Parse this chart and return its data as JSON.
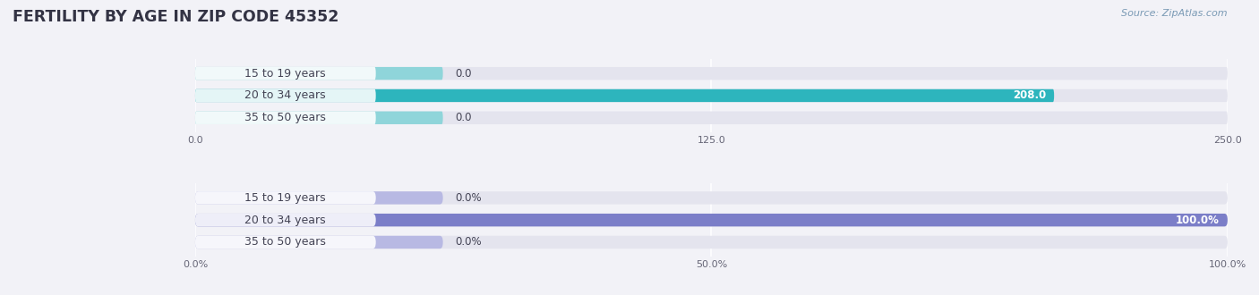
{
  "title": "FERTILITY BY AGE IN ZIP CODE 45352",
  "source": "Source: ZipAtlas.com",
  "top_chart": {
    "categories": [
      "15 to 19 years",
      "20 to 34 years",
      "35 to 50 years"
    ],
    "values": [
      0.0,
      208.0,
      0.0
    ],
    "xlim": [
      0,
      250.0
    ],
    "xticks": [
      0.0,
      125.0,
      250.0
    ],
    "xtick_labels": [
      "0.0",
      "125.0",
      "250.0"
    ],
    "bar_color_full": "#2db5bd",
    "bar_color_stub": "#8fd5da",
    "value_labels": [
      "0.0",
      "208.0",
      "0.0"
    ]
  },
  "bottom_chart": {
    "categories": [
      "15 to 19 years",
      "20 to 34 years",
      "35 to 50 years"
    ],
    "values": [
      0.0,
      100.0,
      0.0
    ],
    "xlim": [
      0,
      100.0
    ],
    "xticks": [
      0.0,
      50.0,
      100.0
    ],
    "xtick_labels": [
      "0.0%",
      "50.0%",
      "100.0%"
    ],
    "bar_color_full": "#7b7ec8",
    "bar_color_stub": "#b8b9e3",
    "value_labels": [
      "0.0%",
      "100.0%",
      "0.0%"
    ]
  },
  "bg_color": "#f2f2f7",
  "bar_bg_color": "#e4e4ee",
  "label_badge_color": "#ffffff",
  "label_text_color": "#444455",
  "tick_color": "#666677",
  "title_color": "#333344",
  "source_color": "#7a9ab5",
  "bar_height": 0.58,
  "label_fontsize": 9.0,
  "title_fontsize": 12.5,
  "value_fontsize": 8.5
}
